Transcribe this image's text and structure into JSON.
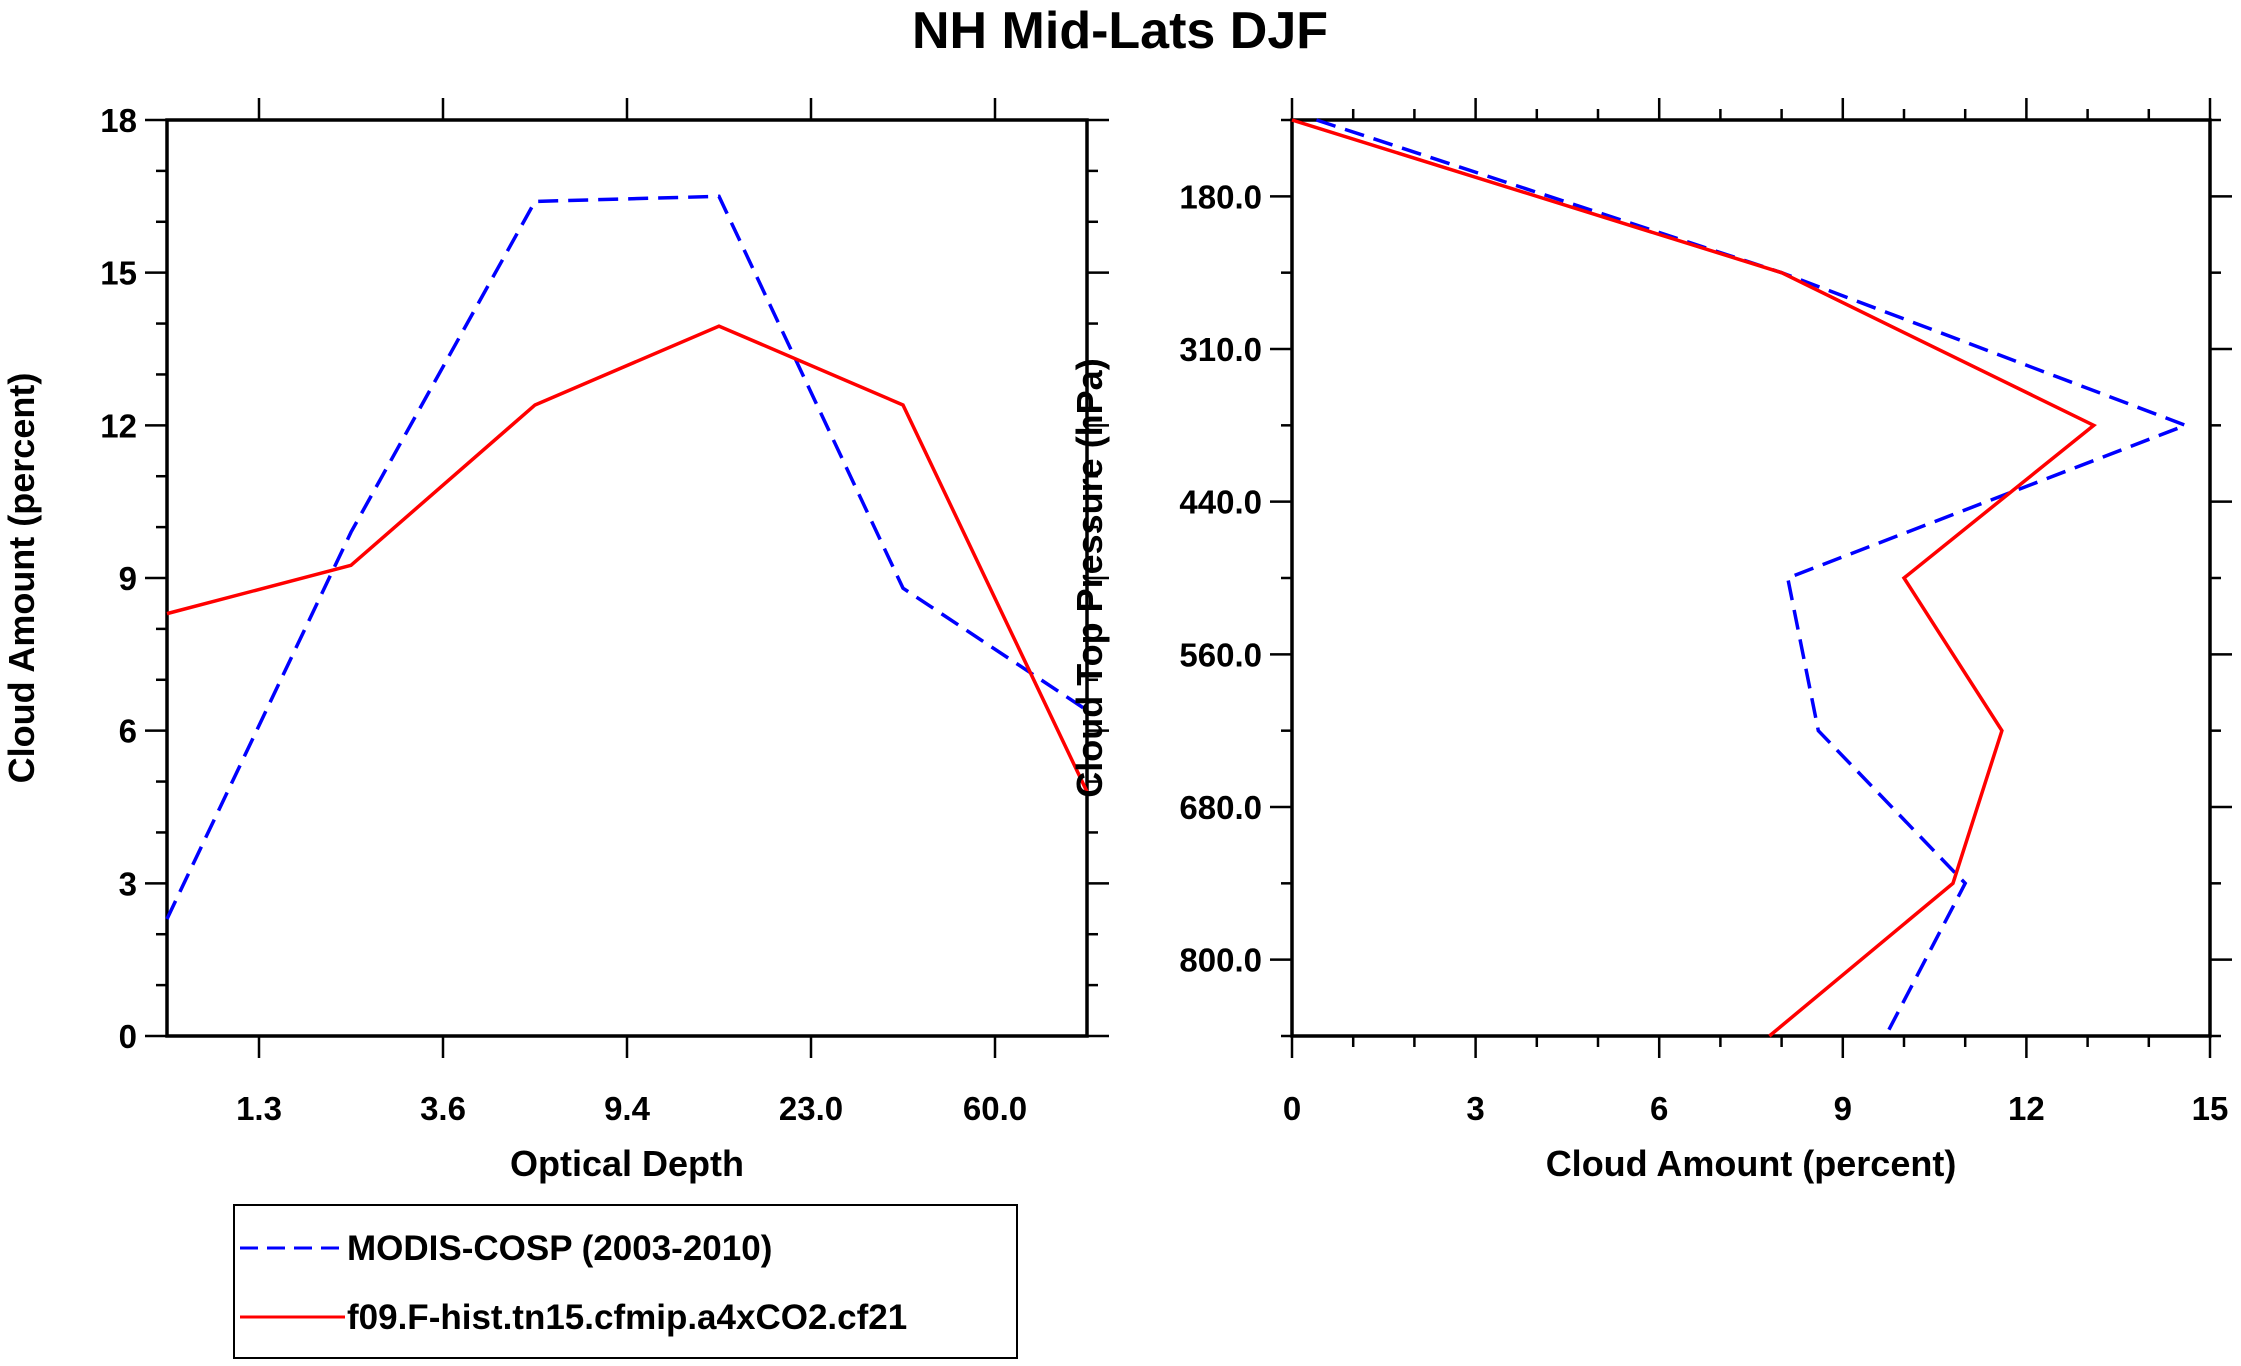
{
  "chart_data": [
    {
      "type": "line",
      "title": "NH Mid-Lats DJF",
      "xlabel": "Optical Depth",
      "ylabel": "Cloud Amount (percent)",
      "x_tick_labels": [
        "1.3",
        "3.6",
        "9.4",
        "23.0",
        "60.0"
      ],
      "x_bin_index": [
        0,
        1,
        2,
        3,
        4,
        5
      ],
      "ylim": [
        0,
        18
      ],
      "y_ticks": [
        0,
        3,
        6,
        9,
        12,
        15,
        18
      ],
      "series": [
        {
          "name": "MODIS-COSP (2003-2010)",
          "color": "#0000ff",
          "dash": "dashed",
          "values": [
            2.3,
            9.9,
            16.4,
            16.5,
            8.8,
            6.4
          ]
        },
        {
          "name": "f09.F-hist.tn15.cfmip.a4xCO2.cf21",
          "color": "#ff0000",
          "dash": "solid",
          "values": [
            8.3,
            9.25,
            12.4,
            13.95,
            12.4,
            4.8
          ]
        }
      ]
    },
    {
      "type": "line",
      "xlabel": "Cloud Amount (percent)",
      "ylabel": "Cloud Top Pressure (hPa)",
      "xlim": [
        0,
        15
      ],
      "x_ticks": [
        0,
        3,
        6,
        9,
        12,
        15
      ],
      "y_tick_labels": [
        "180.0",
        "310.0",
        "440.0",
        "560.0",
        "680.0",
        "800.0"
      ],
      "y_level_index": [
        0,
        1,
        2,
        3,
        4,
        5,
        6
      ],
      "series": [
        {
          "name": "MODIS-COSP (2003-2010)",
          "color": "#0000ff",
          "dash": "dashed",
          "values": [
            0.4,
            8.0,
            14.6,
            8.1,
            8.6,
            11.0,
            9.7
          ]
        },
        {
          "name": "f09.F-hist.tn15.cfmip.a4xCO2.cf21",
          "color": "#ff0000",
          "dash": "solid",
          "values": [
            0.0,
            8.0,
            13.1,
            10.0,
            11.6,
            10.8,
            7.8
          ]
        }
      ]
    }
  ],
  "legend": {
    "items": [
      {
        "label": "MODIS-COSP (2003-2010)",
        "color": "#0000ff",
        "dash": "dashed"
      },
      {
        "label": "f09.F-hist.tn15.cfmip.a4xCO2.cf21",
        "color": "#ff0000",
        "dash": "solid"
      }
    ]
  }
}
